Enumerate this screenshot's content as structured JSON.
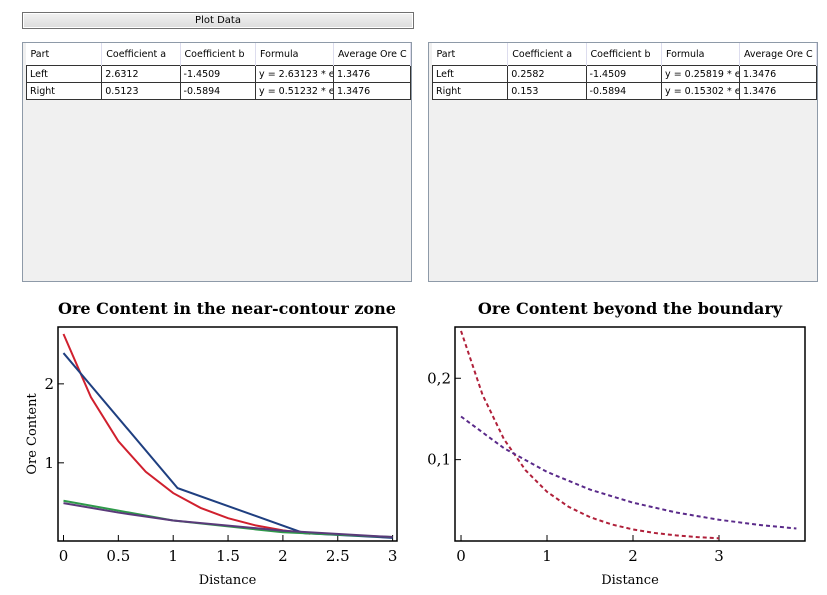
{
  "button": "Plot Data",
  "tables": [
    {
      "columns": [
        "Part",
        "Coefficient a",
        "Coefficient b",
        "Formula",
        "Average Ore C"
      ],
      "rows": [
        [
          "Left",
          "2.6312",
          "-1.4509",
          "y = 2.63123 * e",
          "1.3476"
        ],
        [
          "Right",
          "0.5123",
          "-0.5894",
          "y = 0.51232 * e",
          "1.3476"
        ]
      ]
    },
    {
      "columns": [
        "Part",
        "Coefficient a",
        "Coefficient b",
        "Formula",
        "Average Ore C"
      ],
      "rows": [
        [
          "Left",
          "0.2582",
          "-1.4509",
          "y = 0.25819 * e",
          "1.3476"
        ],
        [
          "Right",
          "0.153",
          "-0.5894",
          "y = 0.15302 * e",
          "1.3476"
        ]
      ]
    }
  ],
  "chart_data": [
    {
      "type": "line",
      "title": "Ore Content in the near-contour zone",
      "x_label": "Distance",
      "y_label": "Ore Content",
      "xlim": [
        -0.05,
        3.04
      ],
      "ylim": [
        0.01,
        2.72
      ],
      "xticks": [
        0,
        0.5,
        1,
        1.5,
        2,
        2.5,
        3
      ],
      "yticks": [
        1,
        2
      ],
      "series": [
        {
          "color": "#d0202e",
          "style": "solid",
          "x": [
            0,
            0.25,
            0.5,
            0.75,
            1,
            1.25,
            1.5,
            1.75,
            2,
            2.25
          ],
          "values": [
            2.631,
            1.831,
            1.274,
            0.886,
            0.617,
            0.429,
            0.299,
            0.208,
            0.145,
            0.101
          ]
        },
        {
          "color": "#1f3f80",
          "style": "solid",
          "x": [
            0,
            1.04,
            2.19,
            3
          ],
          "values": [
            2.39,
            0.68,
            0.11,
            0.05
          ]
        },
        {
          "color": "#2e9a4a",
          "style": "solid",
          "x": [
            0,
            1,
            2,
            3
          ],
          "values": [
            0.52,
            0.27,
            0.12,
            0.06
          ]
        },
        {
          "color": "#5a3a7a",
          "style": "solid",
          "x": [
            0,
            0.5,
            1,
            2,
            3
          ],
          "values": [
            0.49,
            0.37,
            0.27,
            0.14,
            0.06
          ]
        }
      ]
    },
    {
      "type": "line",
      "title": "Ore Content beyond the boundary",
      "x_label": "Distance",
      "xlim": [
        -0.07,
        4.0
      ],
      "ylim": [
        0,
        0.263
      ],
      "xticks": [
        0,
        1,
        2,
        3
      ],
      "yticks": [
        {
          "value": 0.1,
          "label": "0,1"
        },
        {
          "value": 0.2,
          "label": "0,2"
        }
      ],
      "series": [
        {
          "color": "#b0203a",
          "style": "dashed",
          "x": [
            0,
            0.25,
            0.5,
            0.75,
            1,
            1.25,
            1.5,
            1.75,
            2,
            2.25,
            2.5,
            2.75,
            3
          ],
          "values": [
            0.2582,
            0.1797,
            0.125,
            0.087,
            0.0605,
            0.0421,
            0.0293,
            0.0204,
            0.0142,
            0.0099,
            0.0069,
            0.0048,
            0.0033
          ]
        },
        {
          "color": "#5a2a8a",
          "style": "dashed",
          "x": [
            0,
            0.5,
            1,
            1.5,
            2,
            2.5,
            3,
            3.5,
            3.9
          ],
          "values": [
            0.153,
            0.114,
            0.0849,
            0.0632,
            0.0471,
            0.0351,
            0.0261,
            0.0194,
            0.0154
          ]
        }
      ]
    }
  ]
}
